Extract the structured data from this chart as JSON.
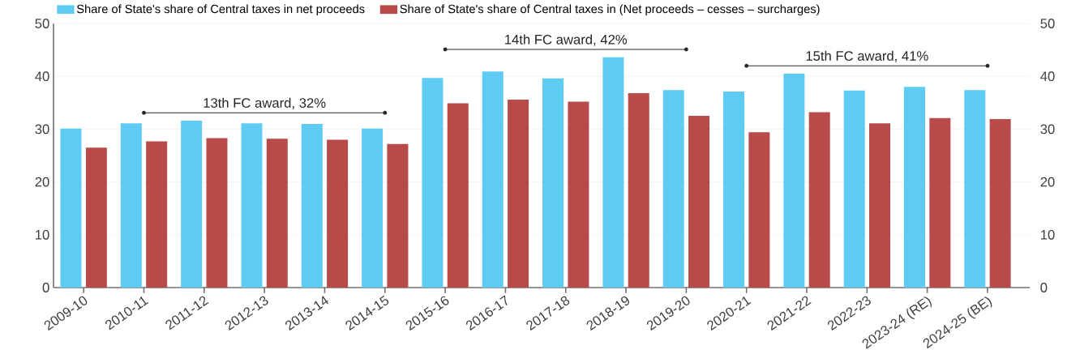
{
  "chart_data": {
    "type": "bar",
    "categories": [
      "2009-10",
      "2010-11",
      "2011-12",
      "2012-13",
      "2013-14",
      "2014-15",
      "2015-16",
      "2016-17",
      "2017-18",
      "2018-19",
      "2019-20",
      "2020-21",
      "2021-22",
      "2022-23",
      "2023-24 (RE)",
      "2024-25 (BE)"
    ],
    "series": [
      {
        "name": "Share of State's share of Central taxes in net proceeds",
        "color": "#5ecbf3",
        "values": [
          30.1,
          31.1,
          31.6,
          31.1,
          31.0,
          30.1,
          39.7,
          40.9,
          39.6,
          43.6,
          37.4,
          37.1,
          40.5,
          37.3,
          38.0,
          37.4
        ]
      },
      {
        "name": "Share of State's share of Central taxes in (Net proceeds – cesses – surcharges)",
        "color": "#b84a4a",
        "values": [
          26.5,
          27.7,
          28.3,
          28.2,
          28.0,
          27.2,
          34.9,
          35.6,
          35.2,
          36.8,
          32.5,
          29.4,
          33.2,
          31.1,
          32.1,
          31.9
        ]
      }
    ],
    "ylim": [
      0,
      50
    ],
    "yticks": [
      0,
      10,
      20,
      30,
      40,
      50
    ],
    "y2lim": [
      0,
      50
    ],
    "y2ticks": [
      0,
      10,
      20,
      30,
      40,
      50
    ],
    "grid": "y",
    "legend": "top",
    "annotations": [
      "13th FC award, 32%",
      "14th FC award, 42%",
      "15th FC award, 41%"
    ]
  }
}
